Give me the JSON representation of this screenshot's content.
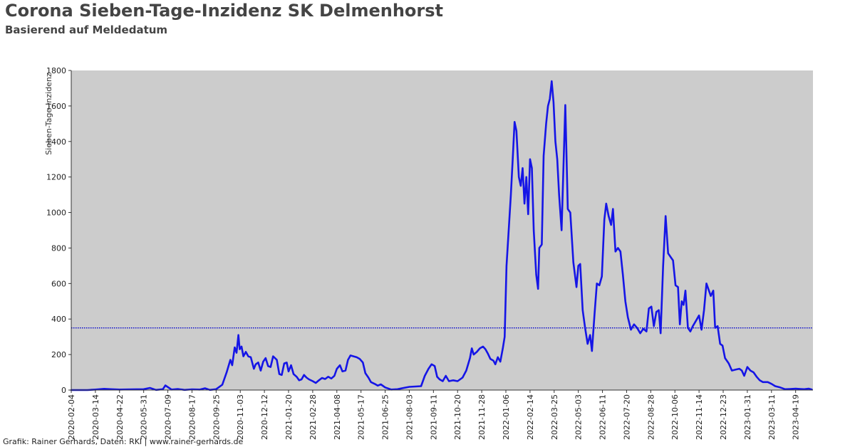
{
  "chart_data": {
    "type": "line",
    "title": "Corona Sieben-Tage-Inzidenz SK Delmenhorst",
    "subtitle": "Basierend auf Meldedatum",
    "ylabel": "Sieben-Tage-Inzidenz",
    "xlabel": "",
    "ylim": [
      0,
      1800
    ],
    "xlim": [
      "2020-02-04",
      "2023-05-17"
    ],
    "grid": false,
    "legend": "none",
    "y_ticks": [
      "0",
      "200",
      "400",
      "600",
      "800",
      "1000",
      "1200",
      "1400",
      "1600",
      "1800"
    ],
    "x_ticks": [
      "2020-02-04",
      "2020-03-14",
      "2020-04-22",
      "2020-05-31",
      "2020-07-09",
      "2020-08-17",
      "2020-09-25",
      "2020-11-03",
      "2020-12-12",
      "2021-01-20",
      "2021-02-28",
      "2021-04-08",
      "2021-05-17",
      "2021-06-25",
      "2021-08-03",
      "2021-09-11",
      "2021-10-20",
      "2021-11-28",
      "2022-01-06",
      "2022-02-14",
      "2022-03-25",
      "2022-05-03",
      "2022-06-11",
      "2022-07-20",
      "2022-08-28",
      "2022-10-06",
      "2022-11-14",
      "2022-12-23",
      "2023-01-31",
      "2023-03-11",
      "2023-04-19"
    ],
    "reference_line": {
      "y": 350,
      "color": "#0000cc",
      "style": "dotted"
    },
    "series": [
      {
        "color": "#1515e6",
        "points": [
          [
            "2020-02-04",
            0
          ],
          [
            "2020-03-01",
            0
          ],
          [
            "2020-03-14",
            3
          ],
          [
            "2020-03-28",
            7
          ],
          [
            "2020-04-08",
            5
          ],
          [
            "2020-04-22",
            3
          ],
          [
            "2020-05-10",
            4
          ],
          [
            "2020-05-31",
            5
          ],
          [
            "2020-06-10",
            12
          ],
          [
            "2020-06-20",
            1
          ],
          [
            "2020-07-01",
            5
          ],
          [
            "2020-07-05",
            26
          ],
          [
            "2020-07-15",
            3
          ],
          [
            "2020-07-25",
            6
          ],
          [
            "2020-08-05",
            1
          ],
          [
            "2020-08-17",
            4
          ],
          [
            "2020-08-30",
            3
          ],
          [
            "2020-09-07",
            10
          ],
          [
            "2020-09-15",
            1
          ],
          [
            "2020-09-25",
            5
          ],
          [
            "2020-10-05",
            30
          ],
          [
            "2020-10-12",
            100
          ],
          [
            "2020-10-18",
            170
          ],
          [
            "2020-10-21",
            140
          ],
          [
            "2020-10-25",
            240
          ],
          [
            "2020-10-28",
            210
          ],
          [
            "2020-10-31",
            310
          ],
          [
            "2020-11-02",
            230
          ],
          [
            "2020-11-05",
            245
          ],
          [
            "2020-11-08",
            190
          ],
          [
            "2020-11-12",
            215
          ],
          [
            "2020-11-16",
            190
          ],
          [
            "2020-11-20",
            185
          ],
          [
            "2020-11-25",
            120
          ],
          [
            "2020-11-28",
            145
          ],
          [
            "2020-12-02",
            155
          ],
          [
            "2020-12-06",
            110
          ],
          [
            "2020-12-10",
            160
          ],
          [
            "2020-12-14",
            180
          ],
          [
            "2020-12-18",
            135
          ],
          [
            "2020-12-22",
            130
          ],
          [
            "2020-12-26",
            190
          ],
          [
            "2021-01-01",
            170
          ],
          [
            "2021-01-05",
            90
          ],
          [
            "2021-01-09",
            85
          ],
          [
            "2021-01-13",
            150
          ],
          [
            "2021-01-17",
            155
          ],
          [
            "2021-01-20",
            105
          ],
          [
            "2021-01-24",
            140
          ],
          [
            "2021-01-28",
            90
          ],
          [
            "2021-02-02",
            75
          ],
          [
            "2021-02-06",
            55
          ],
          [
            "2021-02-10",
            60
          ],
          [
            "2021-02-14",
            85
          ],
          [
            "2021-02-18",
            70
          ],
          [
            "2021-02-22",
            60
          ],
          [
            "2021-02-28",
            50
          ],
          [
            "2021-03-05",
            40
          ],
          [
            "2021-03-10",
            55
          ],
          [
            "2021-03-15",
            68
          ],
          [
            "2021-03-20",
            62
          ],
          [
            "2021-03-25",
            75
          ],
          [
            "2021-03-30",
            65
          ],
          [
            "2021-04-04",
            80
          ],
          [
            "2021-04-08",
            120
          ],
          [
            "2021-04-13",
            140
          ],
          [
            "2021-04-17",
            105
          ],
          [
            "2021-04-22",
            110
          ],
          [
            "2021-04-26",
            170
          ],
          [
            "2021-04-30",
            195
          ],
          [
            "2021-05-05",
            190
          ],
          [
            "2021-05-10",
            185
          ],
          [
            "2021-05-15",
            175
          ],
          [
            "2021-05-20",
            155
          ],
          [
            "2021-05-24",
            95
          ],
          [
            "2021-05-29",
            70
          ],
          [
            "2021-06-02",
            45
          ],
          [
            "2021-06-08",
            35
          ],
          [
            "2021-06-13",
            25
          ],
          [
            "2021-06-18",
            32
          ],
          [
            "2021-06-25",
            15
          ],
          [
            "2021-07-05",
            3
          ],
          [
            "2021-07-15",
            5
          ],
          [
            "2021-07-25",
            12
          ],
          [
            "2021-08-03",
            18
          ],
          [
            "2021-08-13",
            20
          ],
          [
            "2021-08-22",
            22
          ],
          [
            "2021-08-28",
            80
          ],
          [
            "2021-09-03",
            120
          ],
          [
            "2021-09-08",
            145
          ],
          [
            "2021-09-13",
            135
          ],
          [
            "2021-09-17",
            75
          ],
          [
            "2021-09-21",
            60
          ],
          [
            "2021-09-26",
            50
          ],
          [
            "2021-10-01",
            80
          ],
          [
            "2021-10-06",
            50
          ],
          [
            "2021-10-13",
            55
          ],
          [
            "2021-10-20",
            50
          ],
          [
            "2021-10-28",
            70
          ],
          [
            "2021-11-03",
            110
          ],
          [
            "2021-11-09",
            180
          ],
          [
            "2021-11-12",
            235
          ],
          [
            "2021-11-15",
            200
          ],
          [
            "2021-11-20",
            215
          ],
          [
            "2021-11-25",
            235
          ],
          [
            "2021-11-30",
            245
          ],
          [
            "2021-12-04",
            230
          ],
          [
            "2021-12-08",
            205
          ],
          [
            "2021-12-12",
            175
          ],
          [
            "2021-12-17",
            165
          ],
          [
            "2021-12-20",
            145
          ],
          [
            "2021-12-24",
            185
          ],
          [
            "2021-12-28",
            160
          ],
          [
            "2022-01-01",
            235
          ],
          [
            "2022-01-04",
            300
          ],
          [
            "2022-01-07",
            700
          ],
          [
            "2022-01-10",
            870
          ],
          [
            "2022-01-14",
            1100
          ],
          [
            "2022-01-17",
            1300
          ],
          [
            "2022-01-20",
            1510
          ],
          [
            "2022-01-23",
            1460
          ],
          [
            "2022-01-27",
            1200
          ],
          [
            "2022-01-30",
            1150
          ],
          [
            "2022-02-02",
            1250
          ],
          [
            "2022-02-05",
            1050
          ],
          [
            "2022-02-08",
            1200
          ],
          [
            "2022-02-11",
            990
          ],
          [
            "2022-02-14",
            1300
          ],
          [
            "2022-02-17",
            1250
          ],
          [
            "2022-02-20",
            900
          ],
          [
            "2022-02-24",
            650
          ],
          [
            "2022-02-27",
            570
          ],
          [
            "2022-03-01",
            800
          ],
          [
            "2022-03-05",
            820
          ],
          [
            "2022-03-08",
            1320
          ],
          [
            "2022-03-12",
            1500
          ],
          [
            "2022-03-15",
            1600
          ],
          [
            "2022-03-18",
            1640
          ],
          [
            "2022-03-21",
            1740
          ],
          [
            "2022-03-24",
            1620
          ],
          [
            "2022-03-27",
            1400
          ],
          [
            "2022-03-30",
            1300
          ],
          [
            "2022-04-02",
            1100
          ],
          [
            "2022-04-06",
            900
          ],
          [
            "2022-04-12",
            1605
          ],
          [
            "2022-04-16",
            1020
          ],
          [
            "2022-04-20",
            1000
          ],
          [
            "2022-04-25",
            720
          ],
          [
            "2022-04-30",
            580
          ],
          [
            "2022-05-03",
            700
          ],
          [
            "2022-05-06",
            710
          ],
          [
            "2022-05-10",
            450
          ],
          [
            "2022-05-14",
            350
          ],
          [
            "2022-05-18",
            260
          ],
          [
            "2022-05-22",
            310
          ],
          [
            "2022-05-25",
            220
          ],
          [
            "2022-05-29",
            420
          ],
          [
            "2022-06-02",
            600
          ],
          [
            "2022-06-06",
            590
          ],
          [
            "2022-06-10",
            640
          ],
          [
            "2022-06-14",
            960
          ],
          [
            "2022-06-17",
            1050
          ],
          [
            "2022-06-21",
            980
          ],
          [
            "2022-06-25",
            930
          ],
          [
            "2022-06-28",
            1020
          ],
          [
            "2022-07-02",
            780
          ],
          [
            "2022-07-06",
            800
          ],
          [
            "2022-07-10",
            780
          ],
          [
            "2022-07-14",
            650
          ],
          [
            "2022-07-18",
            500
          ],
          [
            "2022-07-22",
            410
          ],
          [
            "2022-07-27",
            340
          ],
          [
            "2022-08-01",
            370
          ],
          [
            "2022-08-06",
            350
          ],
          [
            "2022-08-11",
            320
          ],
          [
            "2022-08-16",
            345
          ],
          [
            "2022-08-21",
            330
          ],
          [
            "2022-08-25",
            460
          ],
          [
            "2022-08-29",
            470
          ],
          [
            "2022-09-02",
            360
          ],
          [
            "2022-09-06",
            440
          ],
          [
            "2022-09-10",
            450
          ],
          [
            "2022-09-13",
            320
          ],
          [
            "2022-09-17",
            700
          ],
          [
            "2022-09-21",
            980
          ],
          [
            "2022-09-25",
            770
          ],
          [
            "2022-09-29",
            750
          ],
          [
            "2022-10-03",
            730
          ],
          [
            "2022-10-07",
            590
          ],
          [
            "2022-10-11",
            580
          ],
          [
            "2022-10-14",
            370
          ],
          [
            "2022-10-17",
            500
          ],
          [
            "2022-10-20",
            480
          ],
          [
            "2022-10-23",
            560
          ],
          [
            "2022-10-27",
            350
          ],
          [
            "2022-10-31",
            330
          ],
          [
            "2022-11-04",
            360
          ],
          [
            "2022-11-09",
            390
          ],
          [
            "2022-11-14",
            420
          ],
          [
            "2022-11-18",
            340
          ],
          [
            "2022-11-22",
            450
          ],
          [
            "2022-11-26",
            600
          ],
          [
            "2022-11-30",
            560
          ],
          [
            "2022-12-03",
            530
          ],
          [
            "2022-12-07",
            560
          ],
          [
            "2022-12-10",
            350
          ],
          [
            "2022-12-14",
            360
          ],
          [
            "2022-12-18",
            260
          ],
          [
            "2022-12-22",
            250
          ],
          [
            "2022-12-26",
            180
          ],
          [
            "2023-01-01",
            150
          ],
          [
            "2023-01-06",
            110
          ],
          [
            "2023-01-12",
            115
          ],
          [
            "2023-01-18",
            120
          ],
          [
            "2023-01-22",
            110
          ],
          [
            "2023-01-26",
            80
          ],
          [
            "2023-01-31",
            130
          ],
          [
            "2023-02-05",
            110
          ],
          [
            "2023-02-10",
            100
          ],
          [
            "2023-02-15",
            75
          ],
          [
            "2023-02-20",
            55
          ],
          [
            "2023-02-25",
            45
          ],
          [
            "2023-03-05",
            45
          ],
          [
            "2023-03-11",
            35
          ],
          [
            "2023-03-17",
            22
          ],
          [
            "2023-03-25",
            15
          ],
          [
            "2023-04-02",
            5
          ],
          [
            "2023-04-10",
            6
          ],
          [
            "2023-04-19",
            8
          ],
          [
            "2023-04-27",
            6
          ],
          [
            "2023-05-03",
            5
          ],
          [
            "2023-05-10",
            8
          ],
          [
            "2023-05-15",
            3
          ]
        ]
      }
    ]
  },
  "footer": "Grafik: Rainer Gerhards, Daten: RKI | www.rainer-gerhards.de"
}
